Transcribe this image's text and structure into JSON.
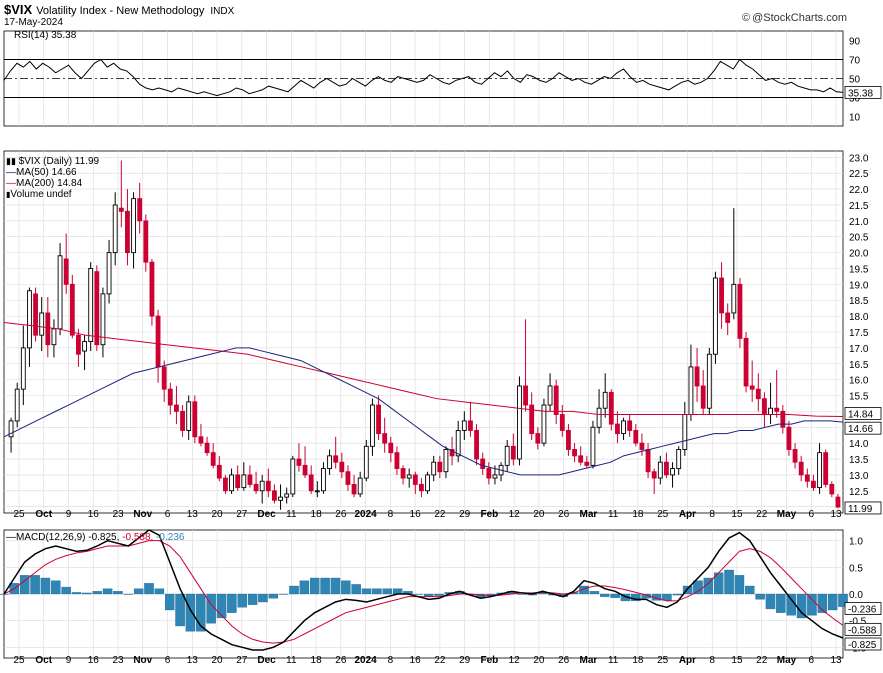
{
  "header": {
    "symbol": "$VIX",
    "name": "Volatility Index - New Methodology",
    "exchange": "INDX",
    "date": "17-May-2024",
    "credit": "@StockCharts.com"
  },
  "colors": {
    "up": "#000000",
    "down": "#cc0033",
    "ma50": "#1a237e",
    "ma200": "#cc0033",
    "macd_hist": "#2f86b5",
    "grid": "#d9d9d9",
    "axis": "#000000"
  },
  "panels": {
    "rsi": {
      "legend": "RSI(14) 35.38",
      "levels": [
        "90",
        "70",
        "50",
        "30",
        "10"
      ],
      "last": "35.38"
    },
    "price": {
      "legend": {
        "title": "$VIX (Daily) 11.99",
        "ma50": "MA(50) 14.66",
        "ma200": "MA(200) 14.84",
        "volume": "Volume undef"
      },
      "y_ticks": [
        "23.0",
        "22.5",
        "22.0",
        "21.5",
        "21.0",
        "20.5",
        "20.0",
        "19.5",
        "19.0",
        "18.5",
        "18.0",
        "17.5",
        "17.0",
        "16.5",
        "16.0",
        "15.5",
        "15.0",
        "14.5",
        "14.0",
        "13.5",
        "13.0",
        "12.5",
        "12.0"
      ],
      "last_price": "11.99",
      "ma50_tag": "14.66",
      "ma200_tag": "14.84"
    },
    "macd": {
      "legend": {
        "title": "MACD(12,26,9)",
        "macd": "-0.825,",
        "signal": "-0.588,",
        "hist": "-0.236"
      },
      "y_ticks": [
        "1.0",
        "0.5",
        "0.0",
        "-0.5",
        "-1.0"
      ],
      "tags": [
        "-0.236",
        "-0.588",
        "-0.825"
      ]
    }
  },
  "x_axis_labels": [
    "25",
    "Oct",
    "9",
    "16",
    "23",
    "Nov",
    "6",
    "13",
    "20",
    "27",
    "Dec",
    "11",
    "18",
    "26",
    "2024",
    "8",
    "16",
    "22",
    "29",
    "Feb",
    "12",
    "20",
    "26",
    "Mar",
    "11",
    "18",
    "25",
    "Apr",
    "8",
    "15",
    "22",
    "May",
    "6",
    "13"
  ],
  "chart_data": [
    {
      "type": "line",
      "name": "RSI(14)",
      "ylim": [
        0,
        100
      ],
      "reference_lines": [
        70,
        50,
        30
      ],
      "values": [
        48,
        58,
        66,
        62,
        68,
        60,
        66,
        62,
        56,
        60,
        64,
        56,
        50,
        58,
        66,
        70,
        62,
        66,
        60,
        58,
        52,
        44,
        40,
        38,
        40,
        38,
        36,
        40,
        38,
        36,
        34,
        36,
        34,
        32,
        34,
        36,
        40,
        38,
        34,
        36,
        38,
        42,
        40,
        38,
        36,
        42,
        48,
        44,
        40,
        46,
        50,
        46,
        42,
        44,
        50,
        46,
        42,
        48,
        52,
        48,
        46,
        52,
        50,
        48,
        46,
        48,
        54,
        50,
        46,
        44,
        48,
        50,
        52,
        46,
        44,
        50,
        56,
        52,
        58,
        50,
        46,
        54,
        52,
        48,
        46,
        50,
        56,
        52,
        48,
        50,
        46,
        44,
        48,
        52,
        50,
        56,
        60,
        52,
        46,
        48,
        44,
        42,
        40,
        38,
        42,
        46,
        48,
        44,
        46,
        50,
        58,
        68,
        64,
        60,
        70,
        64,
        60,
        54,
        48,
        50,
        46,
        44,
        46,
        42,
        40,
        38,
        38,
        36,
        40,
        36,
        35.38
      ],
      "last": 35.38
    },
    {
      "type": "candlestick",
      "name": "$VIX (Daily)",
      "ylim": [
        11.8,
        23.2
      ],
      "last": 11.99,
      "candles": [
        [
          14.2,
          14.8,
          13.7,
          14.7
        ],
        [
          14.7,
          15.9,
          14.5,
          15.7
        ],
        [
          15.7,
          17.7,
          15.2,
          17.0
        ],
        [
          17.0,
          18.9,
          16.4,
          18.8
        ],
        [
          18.7,
          18.9,
          17.2,
          17.4
        ],
        [
          17.4,
          18.6,
          16.9,
          18.1
        ],
        [
          18.1,
          18.6,
          16.7,
          17.1
        ],
        [
          17.1,
          17.9,
          16.7,
          17.6
        ],
        [
          17.6,
          20.3,
          17.4,
          19.9
        ],
        [
          19.8,
          20.6,
          18.7,
          19.0
        ],
        [
          19.0,
          19.3,
          17.3,
          17.4
        ],
        [
          17.4,
          17.6,
          16.4,
          16.8
        ],
        [
          16.9,
          17.4,
          16.3,
          17.2
        ],
        [
          17.2,
          19.7,
          16.9,
          19.5
        ],
        [
          19.4,
          19.6,
          16.9,
          17.1
        ],
        [
          17.1,
          18.9,
          16.7,
          18.7
        ],
        [
          18.7,
          20.4,
          18.4,
          20.0
        ],
        [
          20.0,
          21.9,
          19.6,
          21.5
        ],
        [
          21.4,
          22.9,
          20.8,
          21.3
        ],
        [
          21.3,
          22.0,
          19.6,
          20.0
        ],
        [
          20.0,
          21.9,
          19.5,
          21.7
        ],
        [
          21.7,
          22.2,
          20.6,
          21.0
        ],
        [
          21.0,
          21.2,
          19.4,
          19.7
        ],
        [
          19.7,
          19.8,
          17.7,
          18.0
        ],
        [
          18.0,
          18.2,
          15.9,
          16.4
        ],
        [
          16.4,
          16.6,
          15.3,
          15.7
        ],
        [
          15.7,
          15.9,
          14.9,
          15.2
        ],
        [
          15.2,
          15.8,
          14.6,
          15.0
        ],
        [
          15.0,
          15.2,
          14.2,
          14.4
        ],
        [
          14.4,
          15.5,
          14.1,
          15.3
        ],
        [
          15.3,
          15.5,
          14.0,
          14.2
        ],
        [
          14.2,
          14.6,
          13.9,
          14.0
        ],
        [
          14.0,
          14.2,
          13.6,
          13.7
        ],
        [
          13.7,
          14.0,
          13.2,
          13.3
        ],
        [
          13.3,
          13.6,
          12.8,
          12.9
        ],
        [
          12.9,
          13.0,
          12.4,
          12.5
        ],
        [
          12.5,
          13.2,
          12.4,
          13.0
        ],
        [
          13.0,
          13.3,
          12.5,
          12.6
        ],
        [
          12.6,
          13.4,
          12.5,
          13.0
        ],
        [
          13.0,
          13.3,
          12.6,
          12.7
        ],
        [
          12.7,
          13.1,
          12.4,
          12.5
        ],
        [
          12.5,
          13.0,
          12.1,
          12.8
        ],
        [
          12.8,
          13.2,
          12.3,
          12.5
        ],
        [
          12.5,
          12.7,
          12.1,
          12.2
        ],
        [
          12.2,
          12.7,
          11.9,
          12.3
        ],
        [
          12.3,
          12.6,
          12.1,
          12.4
        ],
        [
          12.4,
          13.6,
          12.3,
          13.5
        ],
        [
          13.5,
          14.0,
          13.1,
          13.3
        ],
        [
          13.3,
          13.9,
          12.9,
          13.0
        ],
        [
          13.0,
          13.3,
          12.4,
          12.5
        ],
        [
          12.5,
          12.8,
          12.3,
          12.5
        ],
        [
          12.5,
          13.4,
          12.4,
          13.2
        ],
        [
          13.2,
          13.8,
          13.0,
          13.6
        ],
        [
          13.6,
          14.2,
          13.2,
          13.4
        ],
        [
          13.4,
          13.7,
          12.9,
          13.1
        ],
        [
          13.1,
          13.3,
          12.5,
          12.7
        ],
        [
          12.7,
          13.0,
          12.3,
          12.4
        ],
        [
          12.4,
          13.1,
          12.3,
          12.9
        ],
        [
          12.9,
          14.1,
          12.8,
          13.9
        ],
        [
          13.9,
          15.4,
          13.6,
          15.2
        ],
        [
          15.2,
          15.5,
          14.1,
          14.3
        ],
        [
          14.3,
          14.8,
          13.7,
          14.0
        ],
        [
          14.0,
          14.2,
          13.4,
          13.7
        ],
        [
          13.7,
          13.9,
          13.0,
          13.2
        ],
        [
          13.2,
          13.3,
          12.7,
          12.9
        ],
        [
          12.9,
          13.2,
          12.6,
          13.0
        ],
        [
          13.0,
          13.1,
          12.4,
          12.7
        ],
        [
          12.7,
          12.9,
          12.3,
          12.5
        ],
        [
          12.5,
          13.1,
          12.4,
          13.0
        ],
        [
          13.0,
          13.6,
          12.8,
          13.4
        ],
        [
          13.4,
          13.6,
          12.9,
          13.1
        ],
        [
          13.1,
          13.9,
          12.9,
          13.8
        ],
        [
          13.8,
          14.2,
          13.3,
          13.6
        ],
        [
          13.6,
          14.7,
          13.4,
          14.4
        ],
        [
          14.4,
          15.0,
          14.1,
          14.7
        ],
        [
          14.7,
          15.3,
          14.2,
          14.4
        ],
        [
          14.4,
          14.6,
          13.3,
          13.5
        ],
        [
          13.5,
          13.7,
          13.0,
          13.2
        ],
        [
          13.2,
          13.4,
          12.7,
          12.9
        ],
        [
          12.9,
          13.3,
          12.7,
          13.0
        ],
        [
          13.0,
          13.4,
          12.8,
          13.3
        ],
        [
          13.3,
          14.1,
          13.1,
          13.9
        ],
        [
          13.9,
          14.3,
          13.3,
          13.5
        ],
        [
          13.5,
          16.1,
          13.3,
          15.8
        ],
        [
          15.8,
          17.9,
          15.0,
          15.2
        ],
        [
          15.2,
          15.6,
          14.1,
          14.3
        ],
        [
          14.3,
          14.5,
          13.8,
          14.0
        ],
        [
          14.0,
          15.4,
          13.9,
          15.2
        ],
        [
          15.2,
          16.2,
          15.0,
          15.8
        ],
        [
          15.8,
          16.0,
          14.6,
          14.9
        ],
        [
          14.9,
          15.2,
          14.2,
          14.4
        ],
        [
          14.4,
          14.6,
          13.6,
          13.8
        ],
        [
          13.8,
          14.0,
          13.4,
          13.6
        ],
        [
          13.6,
          13.9,
          13.3,
          13.4
        ],
        [
          13.4,
          13.6,
          13.2,
          13.3
        ],
        [
          13.3,
          14.7,
          13.2,
          14.5
        ],
        [
          14.5,
          15.7,
          14.3,
          15.1
        ],
        [
          15.1,
          16.2,
          14.8,
          15.6
        ],
        [
          15.6,
          15.7,
          14.4,
          14.6
        ],
        [
          14.6,
          15.0,
          14.0,
          14.3
        ],
        [
          14.3,
          14.8,
          14.1,
          14.7
        ],
        [
          14.7,
          14.9,
          14.2,
          14.4
        ],
        [
          14.4,
          14.6,
          13.9,
          14.0
        ],
        [
          14.0,
          14.3,
          13.6,
          13.8
        ],
        [
          13.8,
          14.0,
          12.9,
          13.1
        ],
        [
          13.1,
          13.2,
          12.4,
          12.9
        ],
        [
          12.9,
          13.6,
          12.7,
          13.4
        ],
        [
          13.4,
          13.7,
          12.9,
          13.0
        ],
        [
          13.0,
          13.4,
          12.6,
          13.2
        ],
        [
          13.2,
          13.9,
          13.0,
          13.8
        ],
        [
          13.8,
          15.3,
          13.6,
          14.9
        ],
        [
          14.9,
          17.1,
          14.7,
          16.4
        ],
        [
          16.4,
          17.0,
          15.3,
          15.8
        ],
        [
          15.8,
          16.3,
          14.9,
          15.1
        ],
        [
          15.1,
          17.0,
          14.9,
          16.8
        ],
        [
          16.8,
          19.4,
          16.5,
          19.2
        ],
        [
          19.2,
          19.7,
          17.6,
          18.1
        ],
        [
          18.1,
          18.4,
          17.4,
          17.8
        ],
        [
          18.1,
          21.4,
          17.9,
          19.0
        ],
        [
          19.0,
          19.2,
          17.0,
          17.3
        ],
        [
          17.3,
          17.5,
          15.6,
          15.8
        ],
        [
          15.8,
          16.6,
          15.3,
          15.7
        ],
        [
          15.7,
          16.2,
          15.0,
          15.4
        ],
        [
          15.4,
          15.6,
          14.5,
          14.9
        ],
        [
          14.9,
          15.9,
          14.6,
          15.1
        ],
        [
          15.1,
          16.3,
          14.8,
          15.0
        ],
        [
          15.0,
          15.2,
          14.3,
          14.5
        ],
        [
          14.5,
          14.7,
          13.6,
          13.8
        ],
        [
          13.8,
          14.0,
          13.2,
          13.4
        ],
        [
          13.4,
          13.6,
          12.8,
          13.0
        ],
        [
          13.0,
          13.2,
          12.6,
          12.8
        ],
        [
          12.8,
          13.0,
          12.5,
          12.6
        ],
        [
          12.6,
          14.0,
          12.4,
          13.7
        ],
        [
          13.7,
          13.8,
          12.6,
          12.7
        ],
        [
          12.7,
          12.8,
          12.3,
          12.4
        ],
        [
          12.3,
          12.4,
          11.95,
          11.99
        ]
      ]
    },
    {
      "type": "line",
      "name": "MA(50)",
      "ylim": [
        11.8,
        23.2
      ],
      "values": [
        14.2,
        14.4,
        14.6,
        14.8,
        15.0,
        15.2,
        15.4,
        15.6,
        15.8,
        16.0,
        16.2,
        16.3,
        16.4,
        16.5,
        16.6,
        16.7,
        16.8,
        16.9,
        17.0,
        17.0,
        16.9,
        16.8,
        16.7,
        16.6,
        16.4,
        16.2,
        16.0,
        15.8,
        15.6,
        15.4,
        15.1,
        14.8,
        14.5,
        14.2,
        13.9,
        13.7,
        13.5,
        13.3,
        13.2,
        13.1,
        13.0,
        13.0,
        13.0,
        13.0,
        13.1,
        13.2,
        13.3,
        13.4,
        13.6,
        13.7,
        13.8,
        13.9,
        14.0,
        14.1,
        14.2,
        14.3,
        14.3,
        14.4,
        14.4,
        14.5,
        14.6,
        14.6,
        14.7,
        14.7,
        14.7,
        14.66
      ],
      "last": 14.66
    },
    {
      "type": "line",
      "name": "MA(200)",
      "ylim": [
        11.8,
        23.2
      ],
      "values": [
        17.8,
        17.7,
        17.6,
        17.4,
        17.3,
        17.2,
        17.1,
        17.0,
        16.9,
        16.8,
        16.6,
        16.4,
        16.2,
        16.0,
        15.8,
        15.6,
        15.4,
        15.3,
        15.2,
        15.1,
        15.0,
        15.0,
        14.9,
        14.9,
        14.9,
        14.9,
        14.9,
        14.9,
        14.9,
        14.9,
        14.85,
        14.84
      ],
      "last": 14.84
    },
    {
      "type": "line",
      "name": "MACD(12,26,9)",
      "ylim": [
        -1.2,
        1.2
      ],
      "macd": [
        0.0,
        0.3,
        0.6,
        0.75,
        0.85,
        0.9,
        0.85,
        0.8,
        0.82,
        0.9,
        1.0,
        0.95,
        0.9,
        1.05,
        1.2,
        1.1,
        0.6,
        0.1,
        -0.3,
        -0.6,
        -0.75,
        -0.85,
        -0.95,
        -1.0,
        -1.05,
        -1.05,
        -1.0,
        -0.9,
        -0.7,
        -0.5,
        -0.35,
        -0.25,
        -0.15,
        -0.1,
        -0.12,
        -0.15,
        -0.1,
        -0.05,
        0.0,
        0.0,
        -0.05,
        -0.1,
        -0.08,
        0.0,
        0.05,
        -0.02,
        -0.08,
        -0.05,
        0.0,
        0.05,
        0.02,
        0.0,
        0.05,
        0.0,
        -0.05,
        0.05,
        0.25,
        0.2,
        0.1,
        0.05,
        -0.05,
        -0.1,
        -0.1,
        -0.2,
        -0.25,
        -0.15,
        0.1,
        0.3,
        0.5,
        0.8,
        1.05,
        1.15,
        1.0,
        0.7,
        0.4,
        0.15,
        -0.1,
        -0.35,
        -0.5,
        -0.65,
        -0.75,
        -0.825
      ],
      "signal": [
        0.0,
        0.1,
        0.25,
        0.4,
        0.55,
        0.65,
        0.72,
        0.77,
        0.8,
        0.85,
        0.9,
        0.9,
        0.9,
        0.95,
        1.0,
        1.0,
        0.9,
        0.7,
        0.4,
        0.1,
        -0.2,
        -0.4,
        -0.6,
        -0.75,
        -0.85,
        -0.9,
        -0.92,
        -0.9,
        -0.85,
        -0.75,
        -0.65,
        -0.55,
        -0.45,
        -0.35,
        -0.3,
        -0.25,
        -0.2,
        -0.15,
        -0.1,
        -0.05,
        -0.05,
        -0.05,
        -0.05,
        -0.03,
        0.0,
        0.0,
        -0.02,
        -0.03,
        -0.02,
        0.0,
        0.02,
        0.02,
        0.03,
        0.02,
        0.0,
        0.02,
        0.1,
        0.15,
        0.15,
        0.12,
        0.08,
        0.03,
        -0.02,
        -0.08,
        -0.13,
        -0.13,
        -0.05,
        0.05,
        0.2,
        0.4,
        0.6,
        0.8,
        0.85,
        0.8,
        0.68,
        0.5,
        0.3,
        0.1,
        -0.1,
        -0.3,
        -0.45,
        -0.588
      ],
      "last_macd": -0.825,
      "last_signal": -0.588,
      "last_hist": -0.236
    }
  ]
}
